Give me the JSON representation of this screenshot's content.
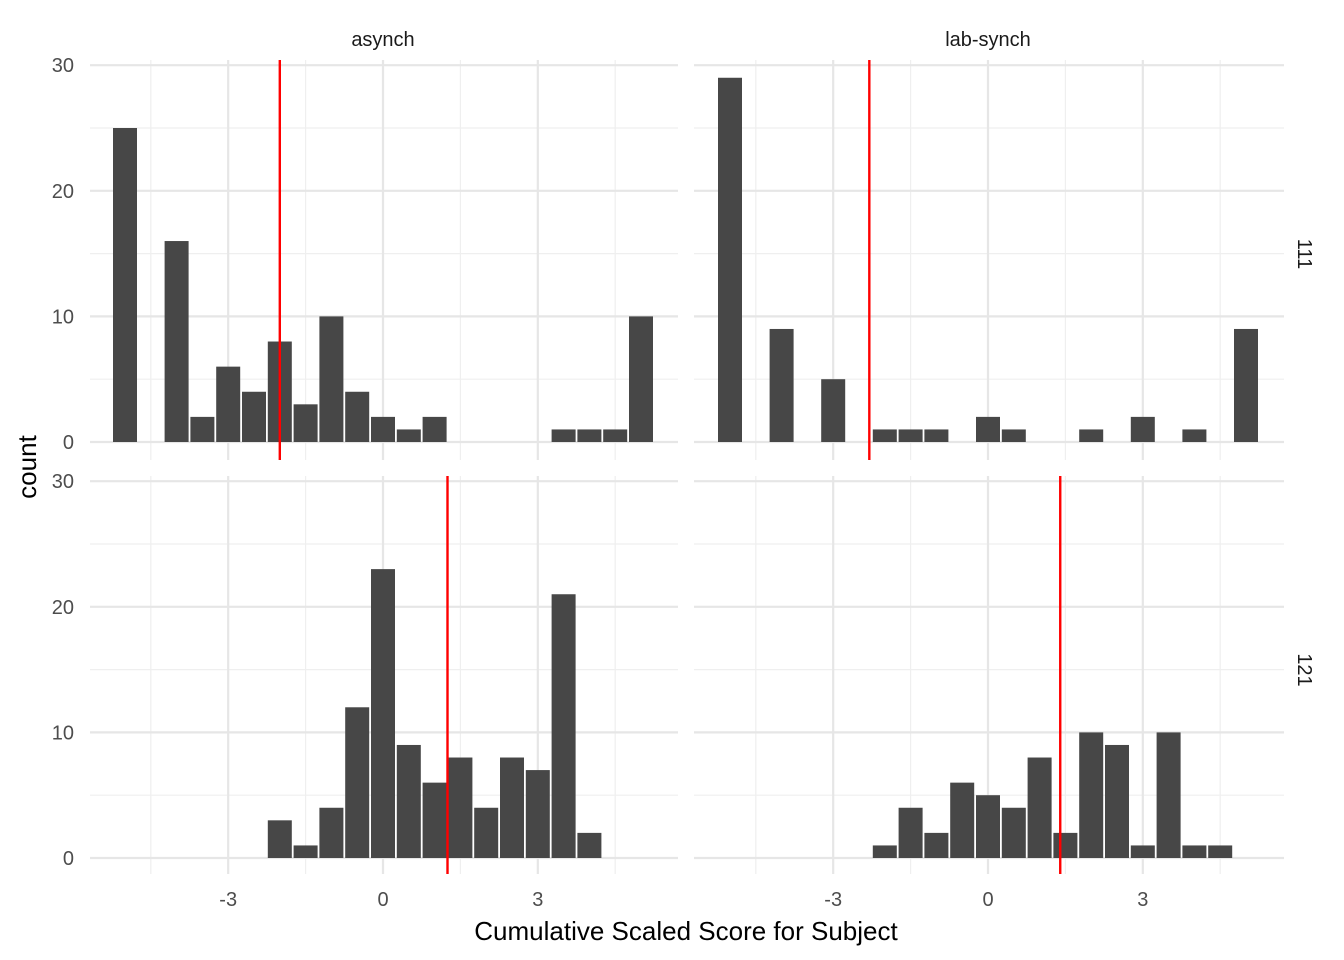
{
  "chart_data": {
    "type": "bar",
    "subtype": "faceted-histogram",
    "xlabel": "Cumulative Scaled Score for Subject",
    "ylabel": "count",
    "x_ticks": [
      -3,
      0,
      3
    ],
    "x_tick_labels": [
      "-3",
      "0",
      "3"
    ],
    "y_ticks": [
      0,
      10,
      20,
      30
    ],
    "y_tick_labels": [
      "0",
      "10",
      "20",
      "30"
    ],
    "xlim": [
      -5.8,
      5.8
    ],
    "ylim": [
      0,
      30
    ],
    "bin_width": 0.5,
    "grid": true,
    "facet_columns": [
      "asynch",
      "lab-synch"
    ],
    "facet_rows": [
      "111",
      "121"
    ],
    "vline_color": "#ff0000",
    "bar_color": "#474747",
    "panels": [
      {
        "column": "asynch",
        "row": "111",
        "vline": -2.0,
        "bins": [
          {
            "x": -5.0,
            "count": 25
          },
          {
            "x": -4.0,
            "count": 16
          },
          {
            "x": -3.5,
            "count": 2
          },
          {
            "x": -3.0,
            "count": 6
          },
          {
            "x": -2.5,
            "count": 4
          },
          {
            "x": -2.0,
            "count": 8
          },
          {
            "x": -1.5,
            "count": 3
          },
          {
            "x": -1.0,
            "count": 10
          },
          {
            "x": -0.5,
            "count": 4
          },
          {
            "x": 0.0,
            "count": 2
          },
          {
            "x": 0.5,
            "count": 1
          },
          {
            "x": 1.0,
            "count": 2
          },
          {
            "x": 3.5,
            "count": 1
          },
          {
            "x": 4.0,
            "count": 1
          },
          {
            "x": 4.5,
            "count": 1
          },
          {
            "x": 5.0,
            "count": 10
          }
        ]
      },
      {
        "column": "lab-synch",
        "row": "111",
        "vline": -2.3,
        "bins": [
          {
            "x": -5.0,
            "count": 29
          },
          {
            "x": -4.0,
            "count": 9
          },
          {
            "x": -3.0,
            "count": 5
          },
          {
            "x": -2.0,
            "count": 1
          },
          {
            "x": -1.5,
            "count": 1
          },
          {
            "x": -1.0,
            "count": 1
          },
          {
            "x": 0.0,
            "count": 2
          },
          {
            "x": 0.5,
            "count": 1
          },
          {
            "x": 2.0,
            "count": 1
          },
          {
            "x": 3.0,
            "count": 2
          },
          {
            "x": 4.0,
            "count": 1
          },
          {
            "x": 5.0,
            "count": 9
          }
        ]
      },
      {
        "column": "asynch",
        "row": "121",
        "vline": 1.25,
        "bins": [
          {
            "x": -2.0,
            "count": 3
          },
          {
            "x": -1.5,
            "count": 1
          },
          {
            "x": -1.0,
            "count": 4
          },
          {
            "x": -0.5,
            "count": 12
          },
          {
            "x": 0.0,
            "count": 23
          },
          {
            "x": 0.5,
            "count": 9
          },
          {
            "x": 1.0,
            "count": 6
          },
          {
            "x": 1.5,
            "count": 8
          },
          {
            "x": 2.0,
            "count": 4
          },
          {
            "x": 2.5,
            "count": 8
          },
          {
            "x": 3.0,
            "count": 7
          },
          {
            "x": 3.5,
            "count": 21
          },
          {
            "x": 4.0,
            "count": 2
          }
        ]
      },
      {
        "column": "lab-synch",
        "row": "121",
        "vline": 1.4,
        "bins": [
          {
            "x": -2.0,
            "count": 1
          },
          {
            "x": -1.5,
            "count": 4
          },
          {
            "x": -1.0,
            "count": 2
          },
          {
            "x": -0.5,
            "count": 6
          },
          {
            "x": 0.0,
            "count": 5
          },
          {
            "x": 0.5,
            "count": 4
          },
          {
            "x": 1.0,
            "count": 8
          },
          {
            "x": 1.5,
            "count": 2
          },
          {
            "x": 2.0,
            "count": 10
          },
          {
            "x": 2.5,
            "count": 9
          },
          {
            "x": 3.0,
            "count": 1
          },
          {
            "x": 3.5,
            "count": 10
          },
          {
            "x": 4.0,
            "count": 1
          },
          {
            "x": 4.5,
            "count": 1
          }
        ]
      }
    ]
  }
}
